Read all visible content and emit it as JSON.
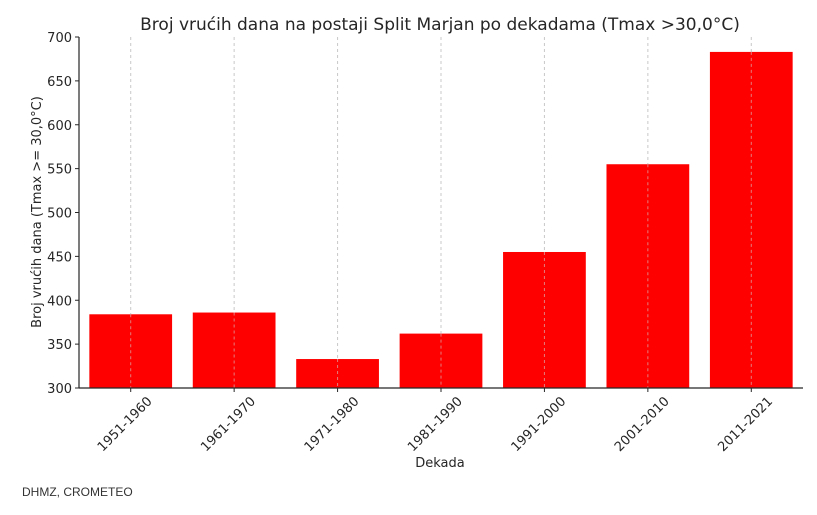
{
  "chart_data": {
    "type": "bar",
    "title": "Broj vrućih dana na postaji Split Marjan po dekadama (Tmax >30,0°C)",
    "xlabel": "Dekada",
    "ylabel": "Broj vrućih dana (Tmax >= 30,0°C)",
    "categories": [
      "1951-1960",
      "1961-1970",
      "1971-1980",
      "1981-1990",
      "1991-2000",
      "2001-2010",
      "2011-2021"
    ],
    "values": [
      384,
      386,
      333,
      362,
      455,
      555,
      683
    ],
    "ylim": [
      300,
      700
    ],
    "yticks": [
      300,
      350,
      400,
      450,
      500,
      550,
      600,
      650,
      700
    ],
    "grid": "vertical dashed",
    "bar_color": "#ff0000"
  },
  "source": "DHMZ, CROMETEO"
}
